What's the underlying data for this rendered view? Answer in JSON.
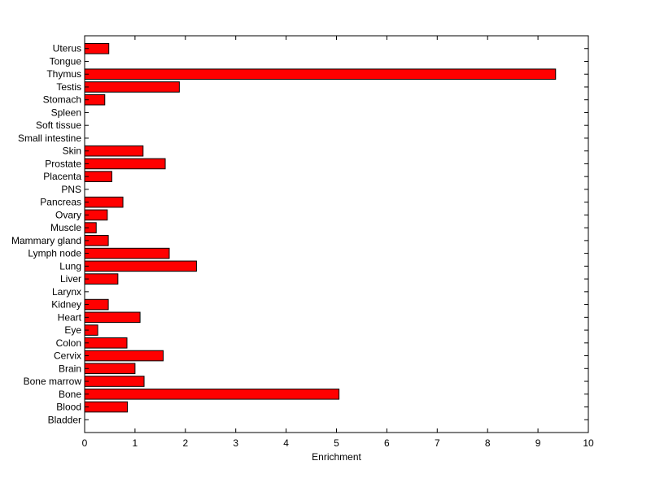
{
  "chart_data": {
    "type": "bar",
    "orientation": "horizontal",
    "title": "",
    "xlabel": "Enrichment",
    "ylabel": "",
    "xlim": [
      0,
      10
    ],
    "x_ticks": [
      "0",
      "1",
      "2",
      "3",
      "4",
      "5",
      "6",
      "7",
      "8",
      "9",
      "10"
    ],
    "grid": false,
    "legend": "none",
    "bar_color": "#ff0000",
    "bar_edge_color": "#000000",
    "categories": [
      "Uterus",
      "Tongue",
      "Thymus",
      "Testis",
      "Stomach",
      "Spleen",
      "Soft tissue",
      "Small intestine",
      "Skin",
      "Prostate",
      "Placenta",
      "PNS",
      "Pancreas",
      "Ovary",
      "Muscle",
      "Mammary gland",
      "Lymph node",
      "Lung",
      "Liver",
      "Larynx",
      "Kidney",
      "Heart",
      "Eye",
      "Colon",
      "Cervix",
      "Brain",
      "Bone marrow",
      "Bone",
      "Blood",
      "Bladder"
    ],
    "values": [
      0.48,
      0,
      9.35,
      1.88,
      0.4,
      0,
      0,
      0,
      1.16,
      1.6,
      0.54,
      0,
      0.76,
      0.45,
      0.23,
      0.47,
      1.68,
      2.22,
      0.66,
      0,
      0.47,
      1.1,
      0.26,
      0.84,
      1.56,
      1.0,
      1.18,
      5.05,
      0.85,
      0
    ]
  }
}
